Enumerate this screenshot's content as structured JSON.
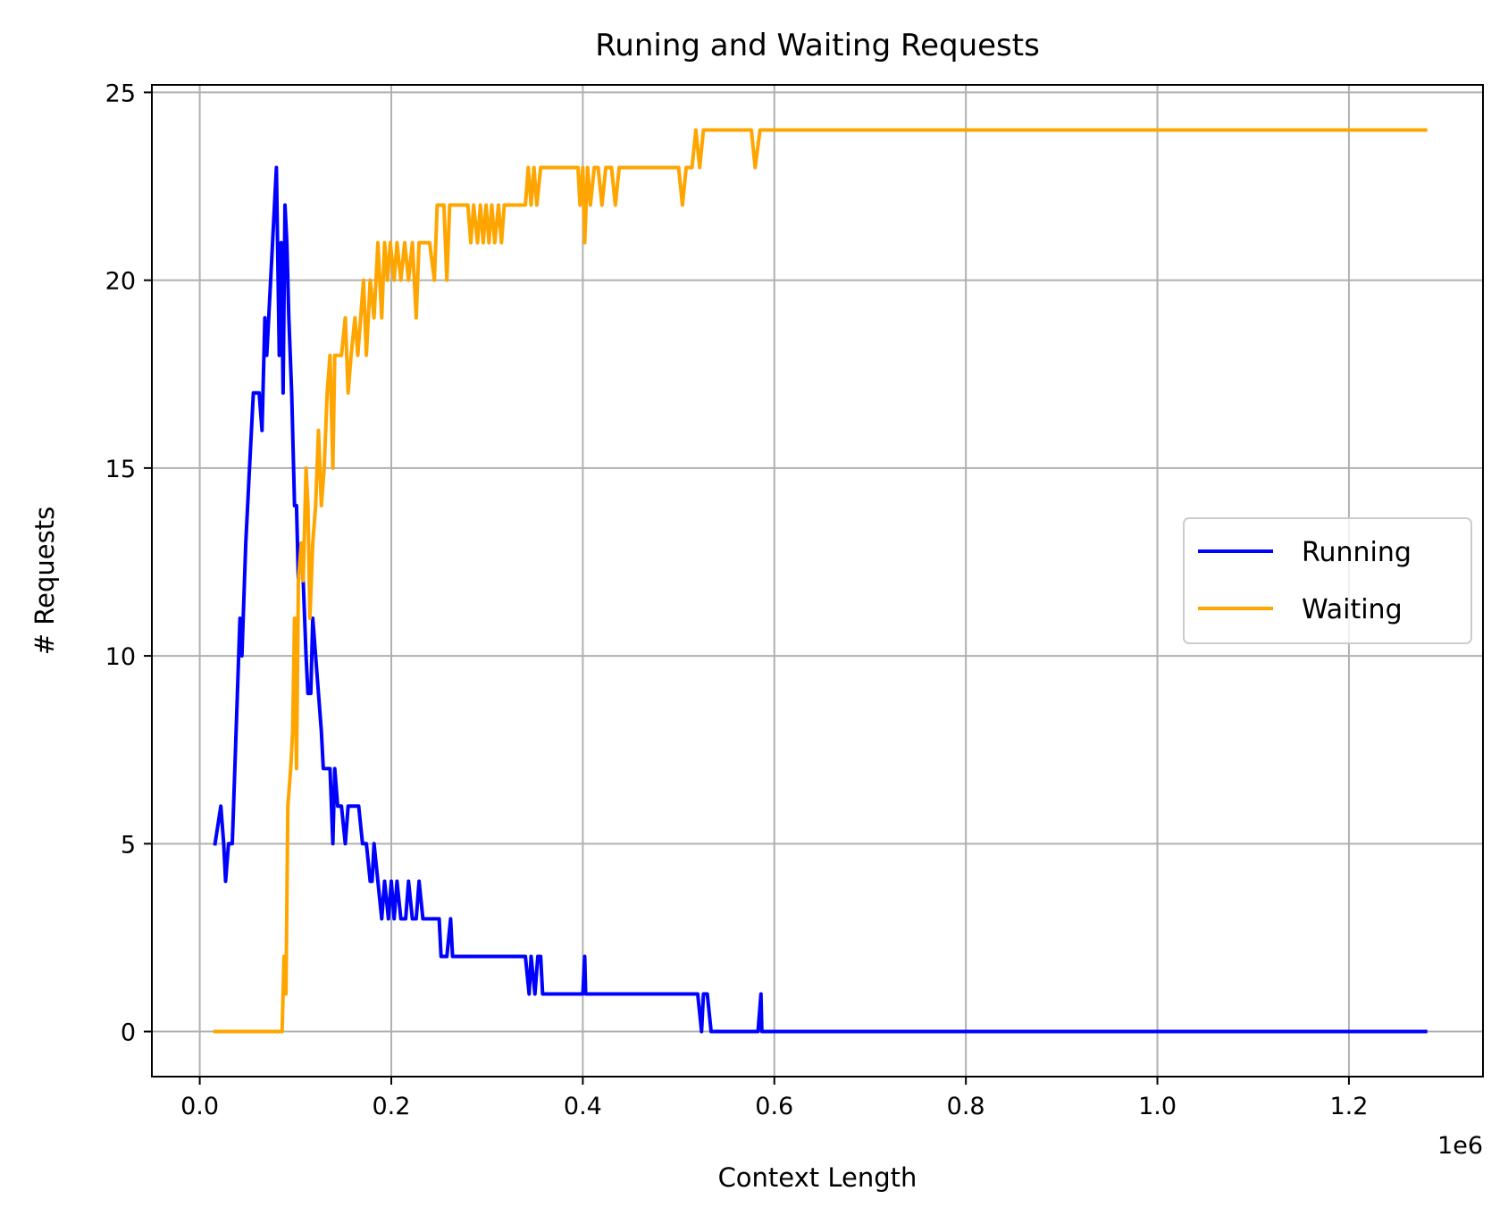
{
  "chart_data": {
    "type": "line",
    "title": "Runing and Waiting Requests",
    "xlabel": "Context Length",
    "ylabel": "# Requests",
    "x_scale_label": "1e6",
    "x_scale_factor": 1000000,
    "xlim": [
      -50000,
      1340000
    ],
    "ylim": [
      -1.2,
      25.2
    ],
    "xticks": [
      0,
      200000,
      400000,
      600000,
      800000,
      1000000,
      1200000
    ],
    "xtick_labels": [
      "0.0",
      "0.2",
      "0.4",
      "0.6",
      "0.8",
      "1.0",
      "1.2"
    ],
    "yticks": [
      0,
      5,
      10,
      15,
      20,
      25
    ],
    "ytick_labels": [
      "0",
      "5",
      "10",
      "15",
      "20",
      "25"
    ],
    "grid": true,
    "legend_position": "center-right",
    "series": [
      {
        "name": "Running",
        "color": "#0000ff",
        "points": [
          [
            16000,
            5
          ],
          [
            22000,
            6
          ],
          [
            25000,
            5
          ],
          [
            27000,
            4
          ],
          [
            30000,
            5
          ],
          [
            34000,
            5
          ],
          [
            38000,
            8
          ],
          [
            42000,
            11
          ],
          [
            44000,
            10
          ],
          [
            48000,
            13
          ],
          [
            52000,
            15
          ],
          [
            56000,
            17
          ],
          [
            62000,
            17
          ],
          [
            65000,
            16
          ],
          [
            68000,
            19
          ],
          [
            70000,
            18
          ],
          [
            72000,
            19
          ],
          [
            76000,
            21
          ],
          [
            80000,
            23
          ],
          [
            83000,
            18
          ],
          [
            85000,
            21
          ],
          [
            87000,
            17
          ],
          [
            89000,
            22
          ],
          [
            91000,
            21
          ],
          [
            93000,
            19
          ],
          [
            96000,
            17
          ],
          [
            99000,
            14
          ],
          [
            101000,
            14
          ],
          [
            103000,
            12
          ],
          [
            106000,
            13
          ],
          [
            108000,
            12
          ],
          [
            111000,
            10
          ],
          [
            113000,
            9
          ],
          [
            116000,
            9
          ],
          [
            118000,
            11
          ],
          [
            121000,
            10
          ],
          [
            124000,
            9
          ],
          [
            127000,
            8
          ],
          [
            129000,
            7
          ],
          [
            132000,
            7
          ],
          [
            136000,
            7
          ],
          [
            139000,
            5
          ],
          [
            141000,
            7
          ],
          [
            144000,
            6
          ],
          [
            148000,
            6
          ],
          [
            152000,
            5
          ],
          [
            155000,
            6
          ],
          [
            160000,
            6
          ],
          [
            166000,
            6
          ],
          [
            170000,
            5
          ],
          [
            174000,
            5
          ],
          [
            178000,
            4
          ],
          [
            180000,
            4
          ],
          [
            182000,
            5
          ],
          [
            186000,
            4
          ],
          [
            190000,
            3
          ],
          [
            193000,
            4
          ],
          [
            197000,
            3
          ],
          [
            200000,
            4
          ],
          [
            203000,
            3
          ],
          [
            206000,
            4
          ],
          [
            210000,
            3
          ],
          [
            215000,
            3
          ],
          [
            218000,
            4
          ],
          [
            222000,
            3
          ],
          [
            226000,
            3
          ],
          [
            229000,
            4
          ],
          [
            233000,
            3
          ],
          [
            238000,
            3
          ],
          [
            245000,
            3
          ],
          [
            250000,
            3
          ],
          [
            252000,
            2
          ],
          [
            258000,
            2
          ],
          [
            262000,
            3
          ],
          [
            264000,
            2
          ],
          [
            280000,
            2
          ],
          [
            300000,
            2
          ],
          [
            320000,
            2
          ],
          [
            340000,
            2
          ],
          [
            344000,
            1
          ],
          [
            346000,
            2
          ],
          [
            350000,
            1
          ],
          [
            353000,
            2
          ],
          [
            356000,
            2
          ],
          [
            358000,
            1
          ],
          [
            380000,
            1
          ],
          [
            400000,
            1
          ],
          [
            402000,
            2
          ],
          [
            403000,
            1
          ],
          [
            420000,
            1
          ],
          [
            460000,
            1
          ],
          [
            500000,
            1
          ],
          [
            520000,
            1
          ],
          [
            524000,
            0
          ],
          [
            526000,
            1
          ],
          [
            530000,
            1
          ],
          [
            534000,
            0
          ],
          [
            560000,
            0
          ],
          [
            583000,
            0
          ],
          [
            586000,
            1
          ],
          [
            587000,
            0
          ],
          [
            600000,
            0
          ],
          [
            800000,
            0
          ],
          [
            1000000,
            0
          ],
          [
            1200000,
            0
          ],
          [
            1280000,
            0
          ]
        ]
      },
      {
        "name": "Waiting",
        "color": "#ffa500",
        "points": [
          [
            16000,
            0
          ],
          [
            40000,
            0
          ],
          [
            60000,
            0
          ],
          [
            80000,
            0
          ],
          [
            86000,
            0
          ],
          [
            88000,
            2
          ],
          [
            90000,
            1
          ],
          [
            92000,
            6
          ],
          [
            95000,
            7
          ],
          [
            97000,
            8
          ],
          [
            99000,
            11
          ],
          [
            101000,
            7
          ],
          [
            103000,
            12
          ],
          [
            106000,
            13
          ],
          [
            108000,
            12
          ],
          [
            111000,
            15
          ],
          [
            113000,
            14
          ],
          [
            115000,
            11
          ],
          [
            118000,
            13
          ],
          [
            121000,
            14
          ],
          [
            124000,
            16
          ],
          [
            127000,
            14
          ],
          [
            130000,
            15
          ],
          [
            133000,
            17
          ],
          [
            136000,
            18
          ],
          [
            139000,
            15
          ],
          [
            141000,
            18
          ],
          [
            145000,
            18
          ],
          [
            148000,
            18
          ],
          [
            152000,
            19
          ],
          [
            155000,
            17
          ],
          [
            158000,
            18
          ],
          [
            162000,
            19
          ],
          [
            165000,
            18
          ],
          [
            168000,
            19
          ],
          [
            171000,
            20
          ],
          [
            174000,
            18
          ],
          [
            178000,
            20
          ],
          [
            182000,
            19
          ],
          [
            186000,
            21
          ],
          [
            190000,
            19
          ],
          [
            193000,
            21
          ],
          [
            196000,
            20
          ],
          [
            199000,
            21
          ],
          [
            203000,
            20
          ],
          [
            206000,
            21
          ],
          [
            210000,
            20
          ],
          [
            214000,
            21
          ],
          [
            218000,
            20
          ],
          [
            222000,
            21
          ],
          [
            226000,
            19
          ],
          [
            229000,
            21
          ],
          [
            234000,
            21
          ],
          [
            240000,
            21
          ],
          [
            245000,
            20
          ],
          [
            248000,
            22
          ],
          [
            255000,
            22
          ],
          [
            258000,
            20
          ],
          [
            261000,
            22
          ],
          [
            270000,
            22
          ],
          [
            280000,
            22
          ],
          [
            283000,
            21
          ],
          [
            286000,
            22
          ],
          [
            290000,
            21
          ],
          [
            293000,
            22
          ],
          [
            296000,
            21
          ],
          [
            299000,
            22
          ],
          [
            302000,
            21
          ],
          [
            305000,
            22
          ],
          [
            308000,
            21
          ],
          [
            312000,
            22
          ],
          [
            315000,
            21
          ],
          [
            318000,
            22
          ],
          [
            330000,
            22
          ],
          [
            340000,
            22
          ],
          [
            343000,
            23
          ],
          [
            346000,
            22
          ],
          [
            349000,
            23
          ],
          [
            352000,
            22
          ],
          [
            356000,
            23
          ],
          [
            380000,
            23
          ],
          [
            395000,
            23
          ],
          [
            397000,
            22
          ],
          [
            400000,
            23
          ],
          [
            402000,
            21
          ],
          [
            405000,
            23
          ],
          [
            408000,
            22
          ],
          [
            412000,
            23
          ],
          [
            416000,
            23
          ],
          [
            420000,
            22
          ],
          [
            424000,
            23
          ],
          [
            430000,
            23
          ],
          [
            434000,
            22
          ],
          [
            438000,
            23
          ],
          [
            460000,
            23
          ],
          [
            500000,
            23
          ],
          [
            504000,
            22
          ],
          [
            508000,
            23
          ],
          [
            514000,
            23
          ],
          [
            518000,
            24
          ],
          [
            522000,
            23
          ],
          [
            526000,
            24
          ],
          [
            530000,
            24
          ],
          [
            560000,
            24
          ],
          [
            576000,
            24
          ],
          [
            580000,
            23
          ],
          [
            585000,
            24
          ],
          [
            600000,
            24
          ],
          [
            800000,
            24
          ],
          [
            1000000,
            24
          ],
          [
            1200000,
            24
          ],
          [
            1280000,
            24
          ]
        ]
      }
    ]
  }
}
